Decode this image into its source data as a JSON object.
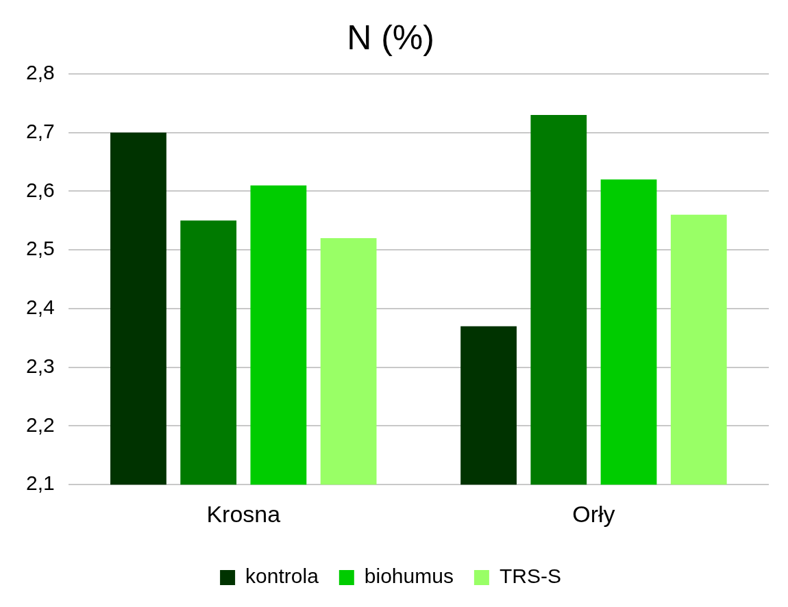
{
  "chart_data": {
    "type": "bar",
    "title": "N (%)",
    "categories": [
      "Krosna",
      "Orły"
    ],
    "series": [
      {
        "name": "kontrola",
        "color": "#003300",
        "values": [
          2.7,
          2.37
        ]
      },
      {
        "color": "#007a00",
        "values": [
          2.55,
          2.73
        ]
      },
      {
        "name": "biohumus",
        "color": "#00cc00",
        "values": [
          2.61,
          2.62
        ]
      },
      {
        "name": "TRS-S",
        "color": "#99ff66",
        "values": [
          2.52,
          2.56
        ]
      }
    ],
    "ylim": [
      2.1,
      2.8
    ],
    "yticks": [
      {
        "value": 2.1,
        "label": "2,1"
      },
      {
        "value": 2.2,
        "label": "2,2"
      },
      {
        "value": 2.3,
        "label": "2,3"
      },
      {
        "value": 2.4,
        "label": "2,4"
      },
      {
        "value": 2.5,
        "label": "2,5"
      },
      {
        "value": 2.6,
        "label": "2,6"
      },
      {
        "value": 2.7,
        "label": "2,7"
      },
      {
        "value": 2.8,
        "label": "2,8"
      }
    ],
    "grid": "y",
    "legend": "bottom"
  }
}
